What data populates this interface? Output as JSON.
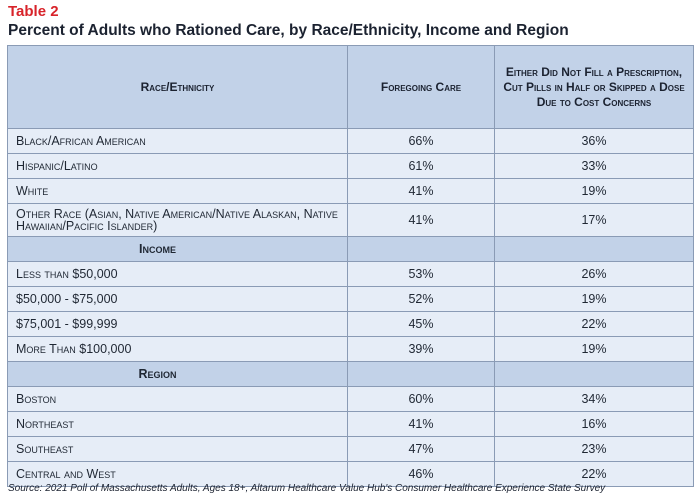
{
  "table_label": "Table 2",
  "title": "Percent of Adults who Rationed Care, by Race/Ethnicity, Income and Region",
  "headers": {
    "category": "Race/Ethnicity",
    "col1": "Foregoing Care",
    "col2": "Either Did Not Fill a Prescription, Cut Pills in Half or Skipped a Dose Due to Cost Concerns"
  },
  "race_rows": [
    {
      "label": "Black/African American",
      "foregoing": "66%",
      "prescription": "36%"
    },
    {
      "label": "Hispanic/Latino",
      "foregoing": "61%",
      "prescription": "33%"
    },
    {
      "label": "White",
      "foregoing": "41%",
      "prescription": "19%"
    },
    {
      "label": "Other Race (Asian, Native American/Native Alaskan, Native Hawaiian/Pacific Islander)",
      "foregoing": "41%",
      "prescription": "17%"
    }
  ],
  "income_header": "Income",
  "income_rows": [
    {
      "label": "Less than $50,000",
      "foregoing": "53%",
      "prescription": "26%"
    },
    {
      "label": "$50,000 - $75,000",
      "foregoing": "52%",
      "prescription": "19%"
    },
    {
      "label": "$75,001 - $99,999",
      "foregoing": "45%",
      "prescription": "22%"
    },
    {
      "label": "More Than $100,000",
      "foregoing": "39%",
      "prescription": "19%"
    }
  ],
  "region_header": "Region",
  "region_rows": [
    {
      "label": "Boston",
      "foregoing": "60%",
      "prescription": "34%"
    },
    {
      "label": "Northeast",
      "foregoing": "41%",
      "prescription": "16%"
    },
    {
      "label": "Southeast",
      "foregoing": "47%",
      "prescription": "23%"
    },
    {
      "label": "Central and West",
      "foregoing": "46%",
      "prescription": "22%"
    }
  ],
  "source": "Source: 2021 Poll of Massachusetts Adults, Ages 18+, Altarum Healthcare Value Hub's Consumer Healthcare Experience State Survey"
}
